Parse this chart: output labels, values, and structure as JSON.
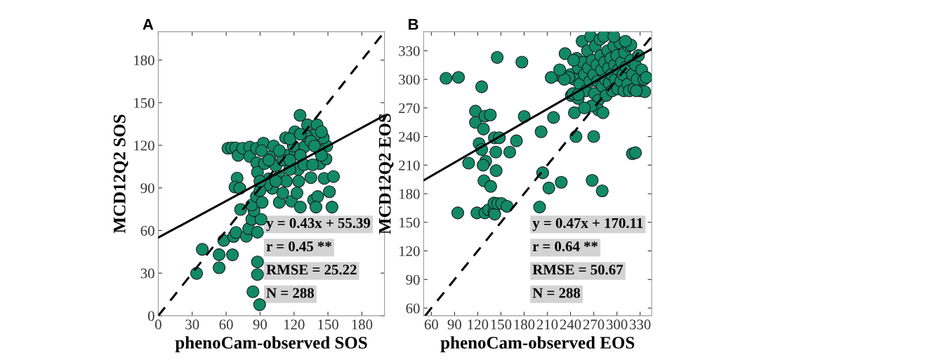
{
  "chart_data": [
    {
      "type": "scatter",
      "title": "A",
      "xlabel": "phenoCam-observed SOS",
      "ylabel": "MCD12Q2 SOS",
      "xlim": [
        0,
        200
      ],
      "ylim": [
        0,
        200
      ],
      "xticks": [
        0,
        30,
        60,
        90,
        120,
        150,
        180
      ],
      "yticks": [
        0,
        30,
        60,
        90,
        120,
        150,
        180
      ],
      "grid": false,
      "marker": "circle",
      "annotations": [
        "y = 0.43x + 55.39",
        "r = 0.45 **",
        "RMSE = 25.22",
        "N = 288"
      ],
      "series": [
        {
          "type": "scatter",
          "color": "#128a66",
          "x": [
            33.9,
            38.9,
            53.8,
            53.8,
            57.9,
            65.6,
            66.6,
            68.7,
            72.8,
            77.8,
            79.9,
            82.7,
            83.7,
            87.7,
            87.7,
            89.6,
            87.7,
            90.8,
            84.6,
            82.7,
            86.8,
            91.8,
            69.7,
            67.8,
            72.1,
            61.6,
            65,
            68.4,
            70.6,
            74.6,
            80.9,
            80.9,
            86.8,
            87.1,
            87.7,
            93,
            93.9,
            97.7,
            98.9,
            102,
            103.9,
            107,
            110.1,
            112.6,
            113.2,
            117.9,
            120.7,
            122.6,
            125.3,
            125.6,
            123.8,
            128.8,
            131.9,
            134.9,
            137.3,
            140.4,
            140.9,
            139.4,
            142.8,
            146.7,
            148.3,
            149,
            151.3,
            153.6,
            154.9,
            145.9,
            138.1,
            131.1,
            121,
            116.3,
            107,
            100.8,
            96.1,
            89.9,
            110.1,
            119.4,
            125.6,
            134.9,
            142.8,
            97.7,
            91.4,
            107,
            116.3,
            125.6,
            138.1,
            144.3,
            124.1,
            113.2,
            103.9,
            116.3,
            128.8,
            136.5,
            89.9,
            144.3
          ],
          "values": [
            29.8,
            46.7,
            43,
            33.8,
            53,
            42.9,
            55.8,
            58.6,
            74.8,
            56,
            61.3,
            67.9,
            16.9,
            37.9,
            29,
            7.8,
            58.8,
            67.9,
            74,
            78,
            83.9,
            79.8,
            96.9,
            90.6,
            89.7,
            117.9,
            118.2,
            118.2,
            112.9,
            117.9,
            118.7,
            112.1,
            117.9,
            107.6,
            101,
            121.5,
            107.1,
            96.4,
            112,
            119.5,
            105.5,
            79.8,
            86.4,
            125.3,
            112.9,
            80.6,
            129.5,
            86.4,
            141.1,
            76.5,
            103,
            118.7,
            134.4,
            97.2,
            81.5,
            134.4,
            83.9,
            76.5,
            107.1,
            96.7,
            110.4,
            119.5,
            87.3,
            76.5,
            98,
            125.3,
            127,
            126.2,
            114.6,
            103,
            98,
            89.7,
            92.2,
            88.1,
            109.6,
            119.5,
            112.9,
            122.8,
            116.2,
            109.6,
            116.2,
            116.2,
            124.5,
            127.8,
            119.5,
            112.9,
            94.7,
            94.7,
            94.7,
            109.6,
            106.3,
            106.3,
            94.7,
            129.5
          ]
        },
        {
          "type": "line",
          "marker": "none",
          "color": "#000000",
          "line_style": "solid",
          "x": [
            0,
            200
          ],
          "values": [
            55,
            141
          ]
        },
        {
          "type": "line",
          "marker": "none",
          "color": "#000000",
          "line_style": "dashed",
          "x": [
            0,
            200
          ],
          "values": [
            0,
            200
          ]
        }
      ]
    },
    {
      "type": "scatter",
      "title": "B",
      "xlabel": "phenoCam-observed EOS",
      "ylabel": "MCD12Q2 EOS",
      "xlim": [
        50,
        345
      ],
      "ylim": [
        52,
        350
      ],
      "xticks": [
        60,
        90,
        120,
        150,
        180,
        210,
        240,
        270,
        300,
        330
      ],
      "yticks": [
        60,
        90,
        120,
        150,
        180,
        210,
        240,
        270,
        300,
        330
      ],
      "grid": false,
      "marker": "circle",
      "annotations": [
        "y = 0.47x + 170.11",
        "r = 0.64 **",
        "RMSE = 50.67",
        "N = 288"
      ],
      "series": [
        {
          "type": "scatter",
          "color": "#128a66",
          "x": [
            79,
            95.1,
            125.1,
            145.2,
            177.1,
            117.1,
            117.1,
            129.3,
            136.3,
            127.4,
            141.5,
            148,
            121.8,
            125.1,
            143.4,
            161.4,
            170.1,
            108.2,
            130.3,
            127,
            143.8,
            128,
            136.8,
            94.2,
            119,
            129.3,
            134,
            141,
            142,
            141,
            145.7,
            150.9,
            157.9,
            180.1,
            204,
            212,
            228,
            200,
            247,
            245,
            270,
            281,
            268,
            320,
            324,
            218,
            225,
            215,
            202,
            233,
            241,
            250,
            240,
            243,
            245,
            248,
            250,
            252,
            255,
            256,
            258,
            260,
            262,
            263,
            265,
            266,
            268,
            270,
            271,
            272,
            274,
            275,
            276,
            278,
            279,
            280,
            281,
            283,
            284,
            285,
            286,
            288,
            289,
            290,
            292,
            293,
            294,
            296,
            297,
            298,
            300,
            301,
            302,
            304,
            305,
            306,
            308,
            309,
            310,
            312,
            314,
            315,
            316,
            318,
            320,
            322,
            324,
            326,
            328,
            330,
            332,
            335,
            338,
            336,
            325,
            318,
            311,
            296,
            276,
            282,
            267,
            258,
            250,
            238,
            244,
            232,
            226
          ],
          "values": [
            301.1,
            302.1,
            292.2,
            323,
            318.1,
            266.6,
            254.8,
            261.4,
            262.7,
            247.9,
            238.7,
            238.7,
            232.6,
            226.4,
            223.7,
            223.7,
            235.5,
            212.1,
            214.1,
            209.9,
            204.2,
            193.6,
            187.7,
            159.9,
            159.9,
            159.9,
            163.1,
            160.6,
            158.6,
            170.2,
            169.7,
            169.7,
            166.8,
            261,
            202,
            186,
            192,
            166,
            240,
            265,
            240,
            183,
            194,
            222,
            223,
            260,
            304,
            302,
            245,
            327,
            283,
            280,
            305,
            285,
            300,
            322,
            312,
            295,
            340,
            318,
            305,
            288,
            330,
            312,
            298,
            345,
            320,
            305,
            285,
            335,
            315,
            298,
            278,
            342,
            325,
            310,
            293,
            345,
            318,
            300,
            283,
            330,
            312,
            296,
            322,
            305,
            288,
            335,
            315,
            300,
            325,
            290,
            310,
            338,
            298,
            318,
            305,
            288,
            328,
            313,
            295,
            335,
            288,
            320,
            305,
            290,
            315,
            300,
            325,
            288,
            310,
            300,
            302,
            287,
            288,
            336,
            340,
            345,
            268,
            265,
            272,
            270,
            284,
            302,
            320,
            300,
            310
          ]
        },
        {
          "type": "line",
          "marker": "none",
          "color": "#000000",
          "line_style": "solid",
          "x": [
            50,
            345
          ],
          "values": [
            194,
            332
          ]
        },
        {
          "type": "line",
          "marker": "none",
          "color": "#000000",
          "line_style": "dashed",
          "x": [
            52,
            345
          ],
          "values": [
            52,
            345
          ]
        }
      ]
    }
  ]
}
